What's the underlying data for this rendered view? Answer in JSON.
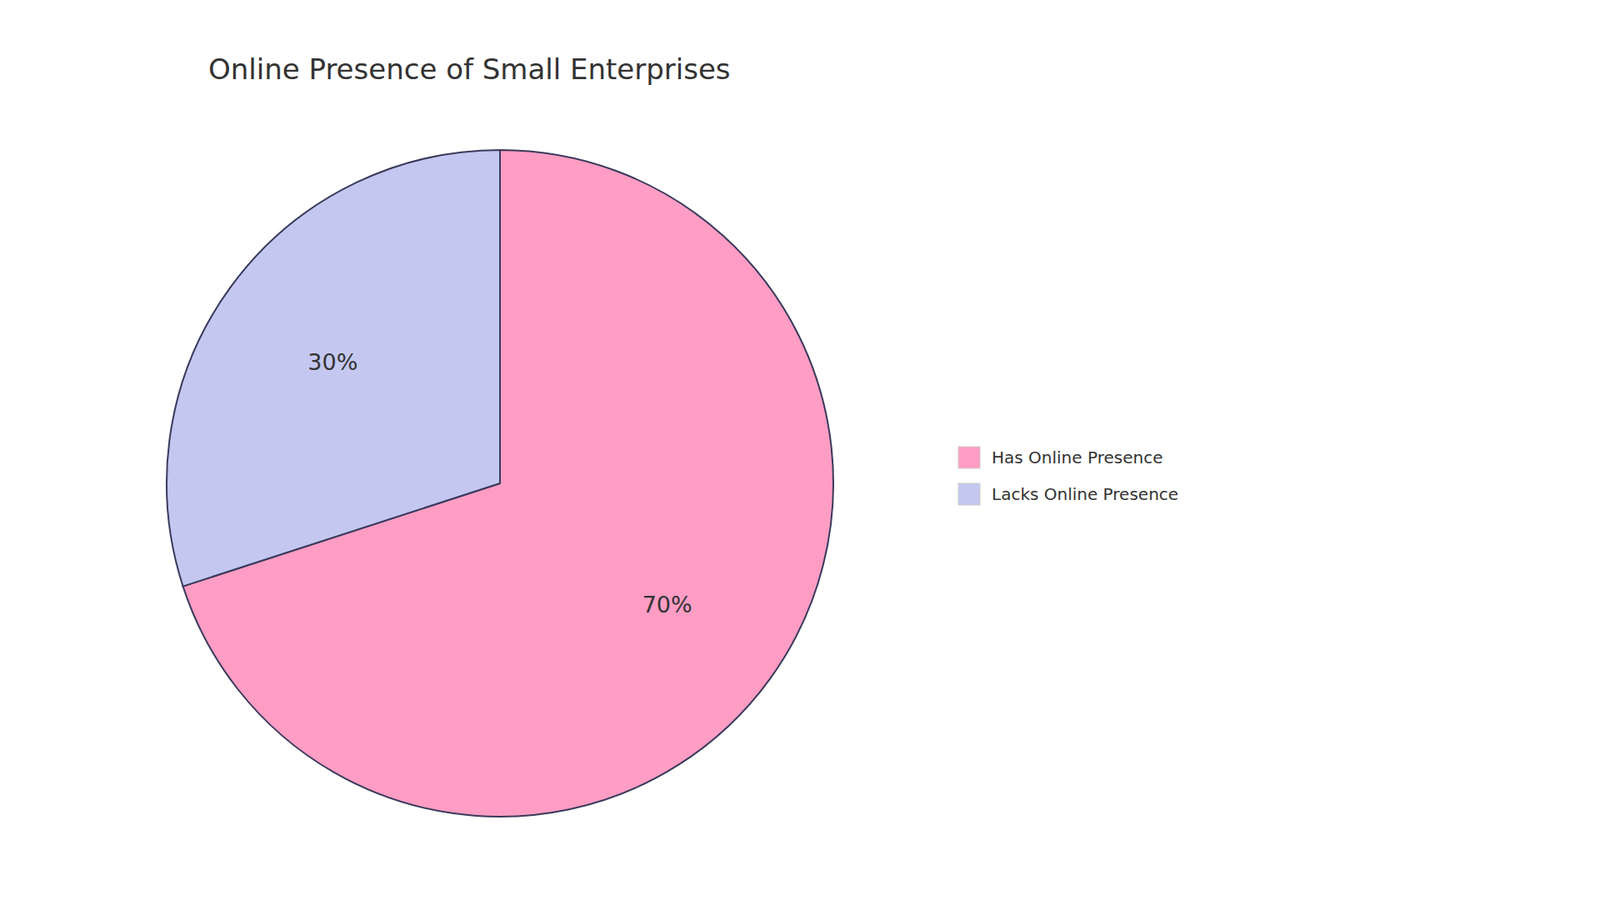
{
  "chart_data": {
    "type": "pie",
    "title": "Online Presence of Small Enterprises",
    "categories": [
      "Has Online Presence",
      "Lacks Online Presence"
    ],
    "values": [
      70,
      30
    ],
    "value_labels": [
      "70%",
      "30%"
    ],
    "colors": [
      "#FF9DC4",
      "#C4C8F0"
    ],
    "data_labels": true,
    "legend": "right"
  }
}
